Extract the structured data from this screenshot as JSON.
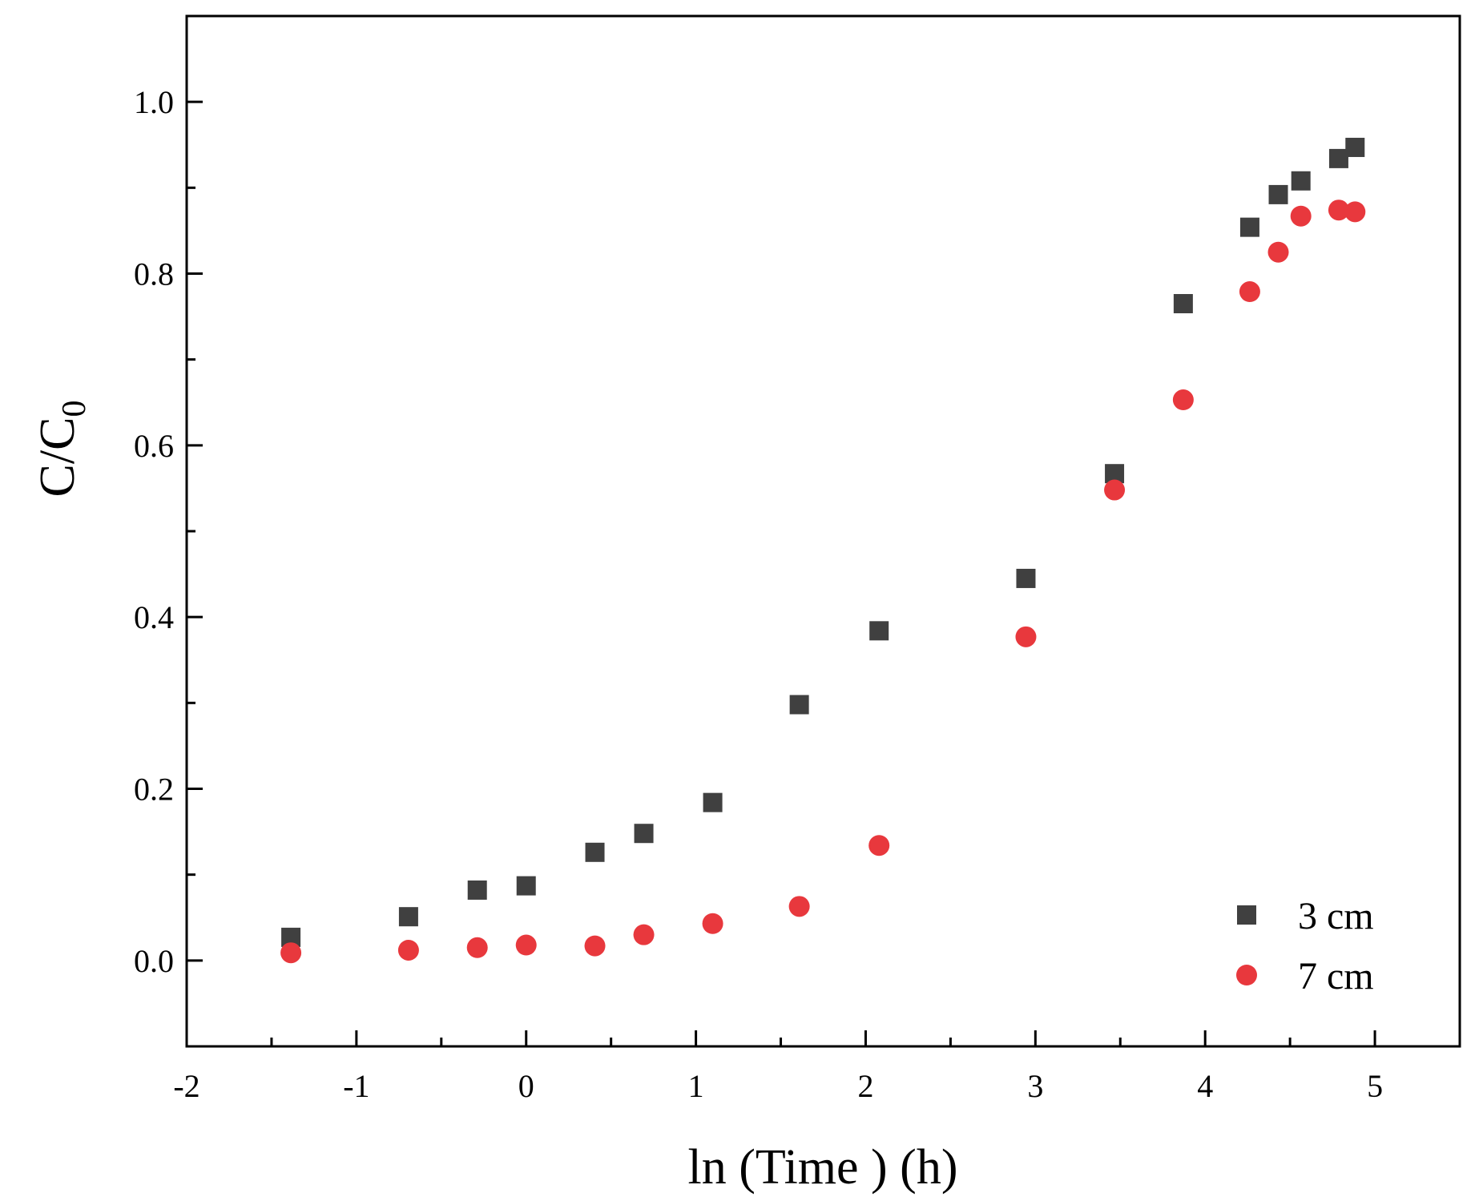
{
  "chart_data": {
    "type": "scatter",
    "title": "",
    "xlabel": "ln (Time ) (h)",
    "ylabel": {
      "base": "C/C",
      "subscript": "0"
    },
    "xlim": [
      -2,
      5.5
    ],
    "ylim": [
      -0.1,
      1.1
    ],
    "xticks": [
      -2,
      -1,
      0,
      1,
      2,
      3,
      4,
      5
    ],
    "xtick_labels": [
      "-2",
      "-1",
      "0",
      "1",
      "2",
      "3",
      "4",
      "5"
    ],
    "yticks": [
      0.0,
      0.2,
      0.4,
      0.6,
      0.8,
      1.0
    ],
    "ytick_labels": [
      "0.0",
      "0.2",
      "0.4",
      "0.6",
      "0.8",
      "1.0"
    ],
    "grid": false,
    "legend_position": "bottom-right",
    "series": [
      {
        "name": "3 cm",
        "marker": "square",
        "color": "#404040",
        "x": [
          -1.386,
          -0.693,
          -0.288,
          0.0,
          0.405,
          0.693,
          1.099,
          1.609,
          2.079,
          2.944,
          3.466,
          3.871,
          4.263,
          4.431,
          4.564,
          4.787,
          4.883
        ],
        "y": [
          0.027,
          0.051,
          0.082,
          0.087,
          0.126,
          0.148,
          0.184,
          0.298,
          0.384,
          0.445,
          0.567,
          0.765,
          0.854,
          0.892,
          0.908,
          0.934,
          0.947
        ]
      },
      {
        "name": "7 cm",
        "marker": "circle",
        "color": "#e8383d",
        "x": [
          -1.386,
          -0.693,
          -0.288,
          0.0,
          0.405,
          0.693,
          1.099,
          1.609,
          2.079,
          2.944,
          3.466,
          3.871,
          4.263,
          4.431,
          4.564,
          4.787,
          4.883
        ],
        "y": [
          0.009,
          0.012,
          0.015,
          0.018,
          0.017,
          0.03,
          0.043,
          0.063,
          0.134,
          0.377,
          0.548,
          0.653,
          0.779,
          0.825,
          0.867,
          0.874,
          0.872
        ]
      }
    ]
  }
}
